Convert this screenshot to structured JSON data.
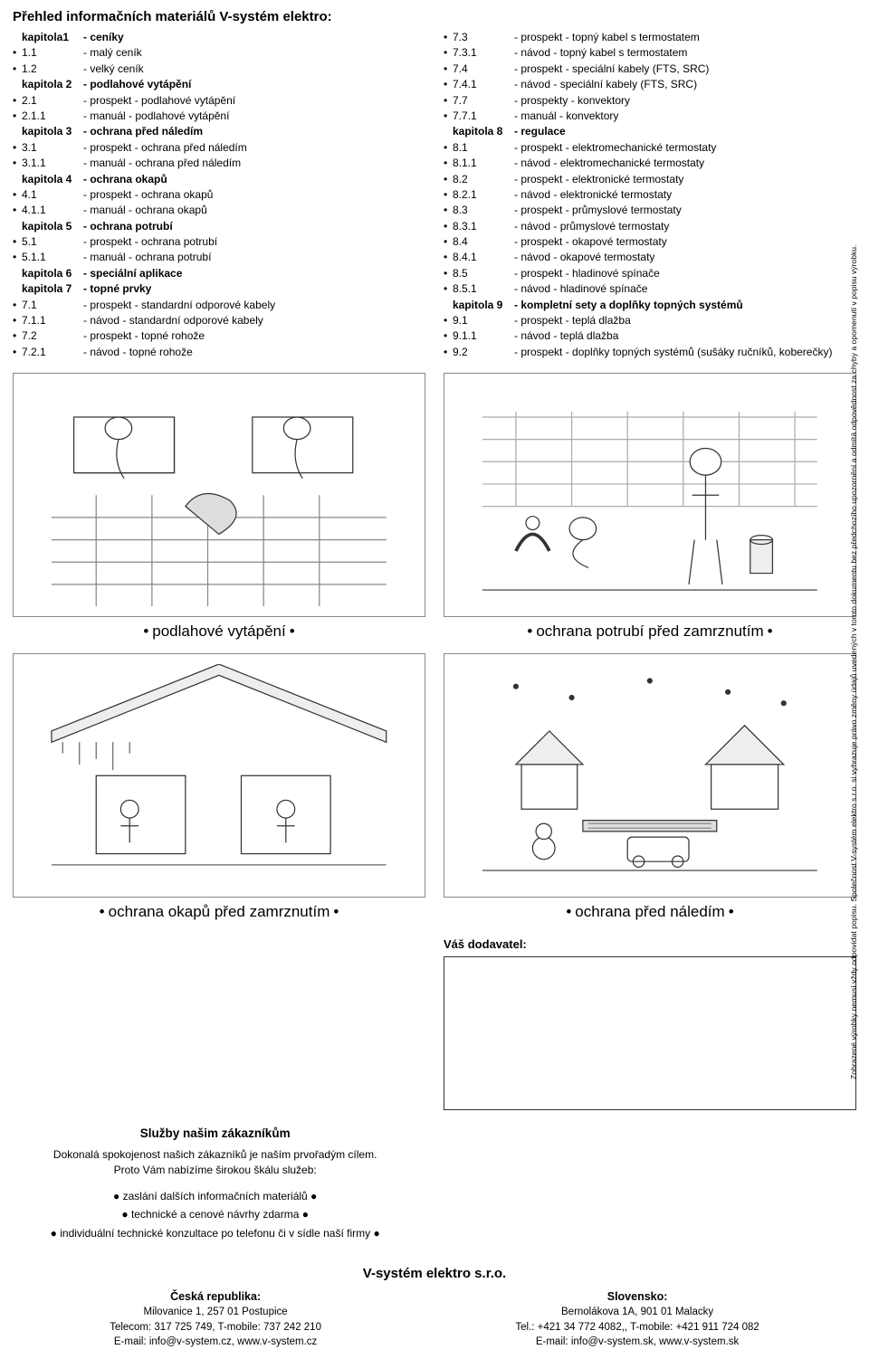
{
  "title": "Přehled informačních materiálů V-systém elektro:",
  "left_toc": [
    {
      "bold": true,
      "num": "kapitola1",
      "label": "- ceníky"
    },
    {
      "bullet": "•",
      "num": "1.1",
      "label": "- malý ceník"
    },
    {
      "bullet": "•",
      "num": "1.2",
      "label": "- velký ceník"
    },
    {
      "bold": true,
      "num": "kapitola 2",
      "label": "- podlahové vytápění"
    },
    {
      "bullet": "•",
      "num": "2.1",
      "label": "- prospekt - podlahové vytápění"
    },
    {
      "bullet": "•",
      "num": "2.1.1",
      "label": "- manuál - podlahové vytápění"
    },
    {
      "bold": true,
      "num": "kapitola 3",
      "label": "- ochrana před náledím"
    },
    {
      "bullet": "•",
      "num": "3.1",
      "label": "- prospekt - ochrana před náledím"
    },
    {
      "bullet": "•",
      "num": "3.1.1",
      "label": "- manuál - ochrana před náledím"
    },
    {
      "bold": true,
      "num": "kapitola 4",
      "label": "- ochrana okapů"
    },
    {
      "bullet": "•",
      "num": "4.1",
      "label": "- prospekt - ochrana okapů"
    },
    {
      "bullet": "•",
      "num": "4.1.1",
      "label": "- manuál - ochrana okapů"
    },
    {
      "bold": true,
      "num": "kapitola 5",
      "label": "- ochrana potrubí"
    },
    {
      "bullet": "•",
      "num": "5.1",
      "label": "- prospekt - ochrana potrubí"
    },
    {
      "bullet": "•",
      "num": "5.1.1",
      "label": "- manuál - ochrana potrubí"
    },
    {
      "bold": true,
      "num": "kapitola 6",
      "label": "- speciální aplikace"
    },
    {
      "bold": true,
      "num": "kapitola 7",
      "label": "- topné prvky"
    },
    {
      "bullet": "•",
      "num": "7.1",
      "label": "- prospekt - standardní odporové kabely"
    },
    {
      "bullet": "•",
      "num": "7.1.1",
      "label": "- návod - standardní odporové kabely"
    },
    {
      "bullet": "•",
      "num": "7.2",
      "label": "- prospekt - topné rohože"
    },
    {
      "bullet": "•",
      "num": "7.2.1",
      "label": "- návod - topné rohože"
    }
  ],
  "right_toc": [
    {
      "bullet": "•",
      "num": "7.3",
      "label": "- prospekt - topný kabel s termostatem"
    },
    {
      "bullet": "•",
      "num": "7.3.1",
      "label": "- návod - topný kabel s termostatem"
    },
    {
      "bullet": "•",
      "num": "7.4",
      "label": "- prospekt - speciální kabely (FTS, SRC)"
    },
    {
      "bullet": "•",
      "num": "7.4.1",
      "label": "- návod - speciální kabely (FTS, SRC)"
    },
    {
      "bullet": "•",
      "num": "7.7",
      "label": "- prospekty - konvektory"
    },
    {
      "bullet": "•",
      "num": "7.7.1",
      "label": "- manuál - konvektory"
    },
    {
      "bold": true,
      "num": "kapitola 8",
      "label": "- regulace"
    },
    {
      "bullet": "•",
      "num": "8.1",
      "label": "- prospekt - elektromechanické termostaty"
    },
    {
      "bullet": "•",
      "num": "8.1.1",
      "label": "- návod - elektromechanické termostaty"
    },
    {
      "bullet": "•",
      "num": "8.2",
      "label": "- prospekt - elektronické termostaty"
    },
    {
      "bullet": "•",
      "num": "8.2.1",
      "label": "- návod - elektronické termostaty"
    },
    {
      "bullet": "•",
      "num": "8.3",
      "label": "- prospekt - průmyslové termostaty"
    },
    {
      "bullet": "•",
      "num": "8.3.1",
      "label": "- návod - průmyslové termostaty"
    },
    {
      "bullet": "•",
      "num": "8.4",
      "label": "- prospekt - okapové termostaty"
    },
    {
      "bullet": "•",
      "num": "8.4.1",
      "label": "- návod - okapové termostaty"
    },
    {
      "bullet": "•",
      "num": "8.5",
      "label": "- prospekt - hladinové spínače"
    },
    {
      "bullet": "•",
      "num": "8.5.1",
      "label": "- návod - hladinové spínače"
    },
    {
      "bold": true,
      "num": "kapitola 9",
      "label": "- kompletní sety a doplňky topných systémů"
    },
    {
      "bullet": "•",
      "num": "9.1",
      "label": "- prospekt - teplá dlažba"
    },
    {
      "bullet": "•",
      "num": "9.1.1",
      "label": "- návod - teplá dlažba"
    },
    {
      "bullet": "•",
      "num": "9.2",
      "label": "- prospekt - doplňky topných systémů (sušáky ručníků, koberečky)"
    }
  ],
  "captions": {
    "top_left": "podlahové vytápění",
    "top_right": "ochrana potrubí před zamrznutím",
    "bottom_left": "ochrana okapů před zamrznutím",
    "bottom_right": "ochrana před náledím"
  },
  "supplier_label": "Váš dodavatel:",
  "services": {
    "title": "Služby našim zákazníkům",
    "intro": "Dokonalá spokojenost našich zákazníků je naším prvořadým cílem.\nProto Vám nabízíme širokou škálu služeb:",
    "items": [
      "● zaslání dalších informačních materiálů ●",
      "● technické a cenové návrhy zdarma ●",
      "● individuální technické konzultace po telefonu či v sídle naší firmy ●"
    ]
  },
  "footer": {
    "company": "V-systém elektro s.r.o.",
    "cz": {
      "country": "Česká republika:",
      "addr": "Milovanice 1, 257 01 Postupice",
      "phone": "Telecom: 317 725 749, T-mobile: 737 242 210",
      "email": "E-mail: info@v-system.cz, www.v-system.cz"
    },
    "sk": {
      "country": "Slovensko:",
      "addr": "Bernolákova 1A, 901 01 Malacky",
      "phone": "Tel.: +421 34 772 4082,, T-mobile: +421 911 724 082",
      "email": "E-mail: info@v-system.sk, www.v-system.sk"
    }
  },
  "side_note": "Zobrazené výrobky nemusí vždy odpovídat popisu. Společnost V-systém elektro s.r.o. si vyhrazuje právo změny údajů uvedených v tomto dokumentu bez předchozího upozornění a odmítá odpovědnost za chyby a opomenutí v popisu výrobku."
}
